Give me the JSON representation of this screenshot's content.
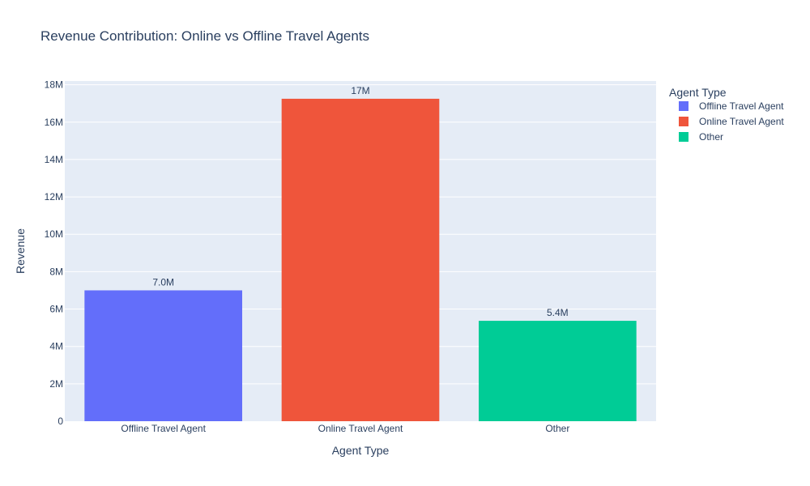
{
  "chart_data": {
    "type": "bar",
    "title": "Revenue Contribution: Online vs Offline Travel Agents",
    "xlabel": "Agent Type",
    "ylabel": "Revenue",
    "categories": [
      "Offline Travel Agent",
      "Online Travel Agent",
      "Other"
    ],
    "values": [
      7000000,
      17250000,
      5370000
    ],
    "data_labels": [
      "7.0M",
      "17M",
      "5.4M"
    ],
    "colors": [
      "#636efa",
      "#ef553b",
      "#00cc96"
    ],
    "ylim": [
      0,
      18200000
    ],
    "yticks": [
      0,
      2000000,
      4000000,
      6000000,
      8000000,
      10000000,
      12000000,
      14000000,
      16000000,
      18000000
    ],
    "ytick_labels": [
      "0",
      "2M",
      "4M",
      "6M",
      "8M",
      "10M",
      "12M",
      "14M",
      "16M",
      "18M"
    ],
    "grid": true,
    "plot_background": "#e5ecf6",
    "legend": {
      "title": "Agent Type",
      "placement": "right",
      "entries": [
        "Offline Travel Agent",
        "Online Travel Agent",
        "Other"
      ]
    }
  }
}
